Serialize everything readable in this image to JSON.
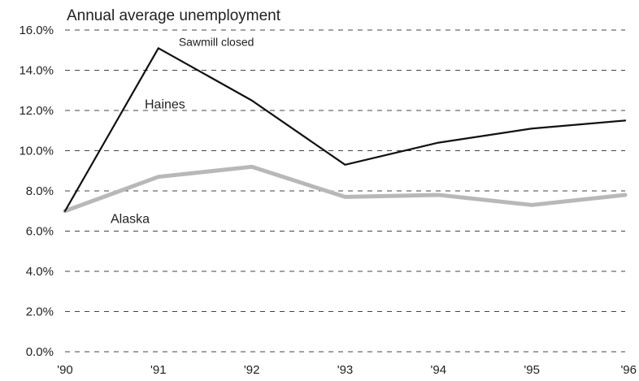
{
  "chart_data": {
    "type": "line",
    "title": "Annual average unemployment",
    "categories": [
      "'90",
      "'91",
      "'92",
      "'93",
      "'94",
      "'95",
      "'96"
    ],
    "y_ticks": [
      "0.0%",
      "2.0%",
      "4.0%",
      "6.0%",
      "8.0%",
      "10.0%",
      "12.0%",
      "14.0%",
      "16.0%"
    ],
    "ylim": [
      0,
      16
    ],
    "grid": true,
    "series": [
      {
        "name": "Haines",
        "values": [
          7.0,
          15.1,
          12.5,
          9.3,
          10.4,
          11.1,
          11.5
        ],
        "color": "#111111"
      },
      {
        "name": "Alaska",
        "values": [
          7.0,
          8.7,
          9.2,
          7.7,
          7.8,
          7.3,
          7.8
        ],
        "color": "#b8b8b8"
      }
    ],
    "annotations": [
      {
        "text": "Sawmill closed",
        "series": 0,
        "index": 1
      }
    ]
  }
}
